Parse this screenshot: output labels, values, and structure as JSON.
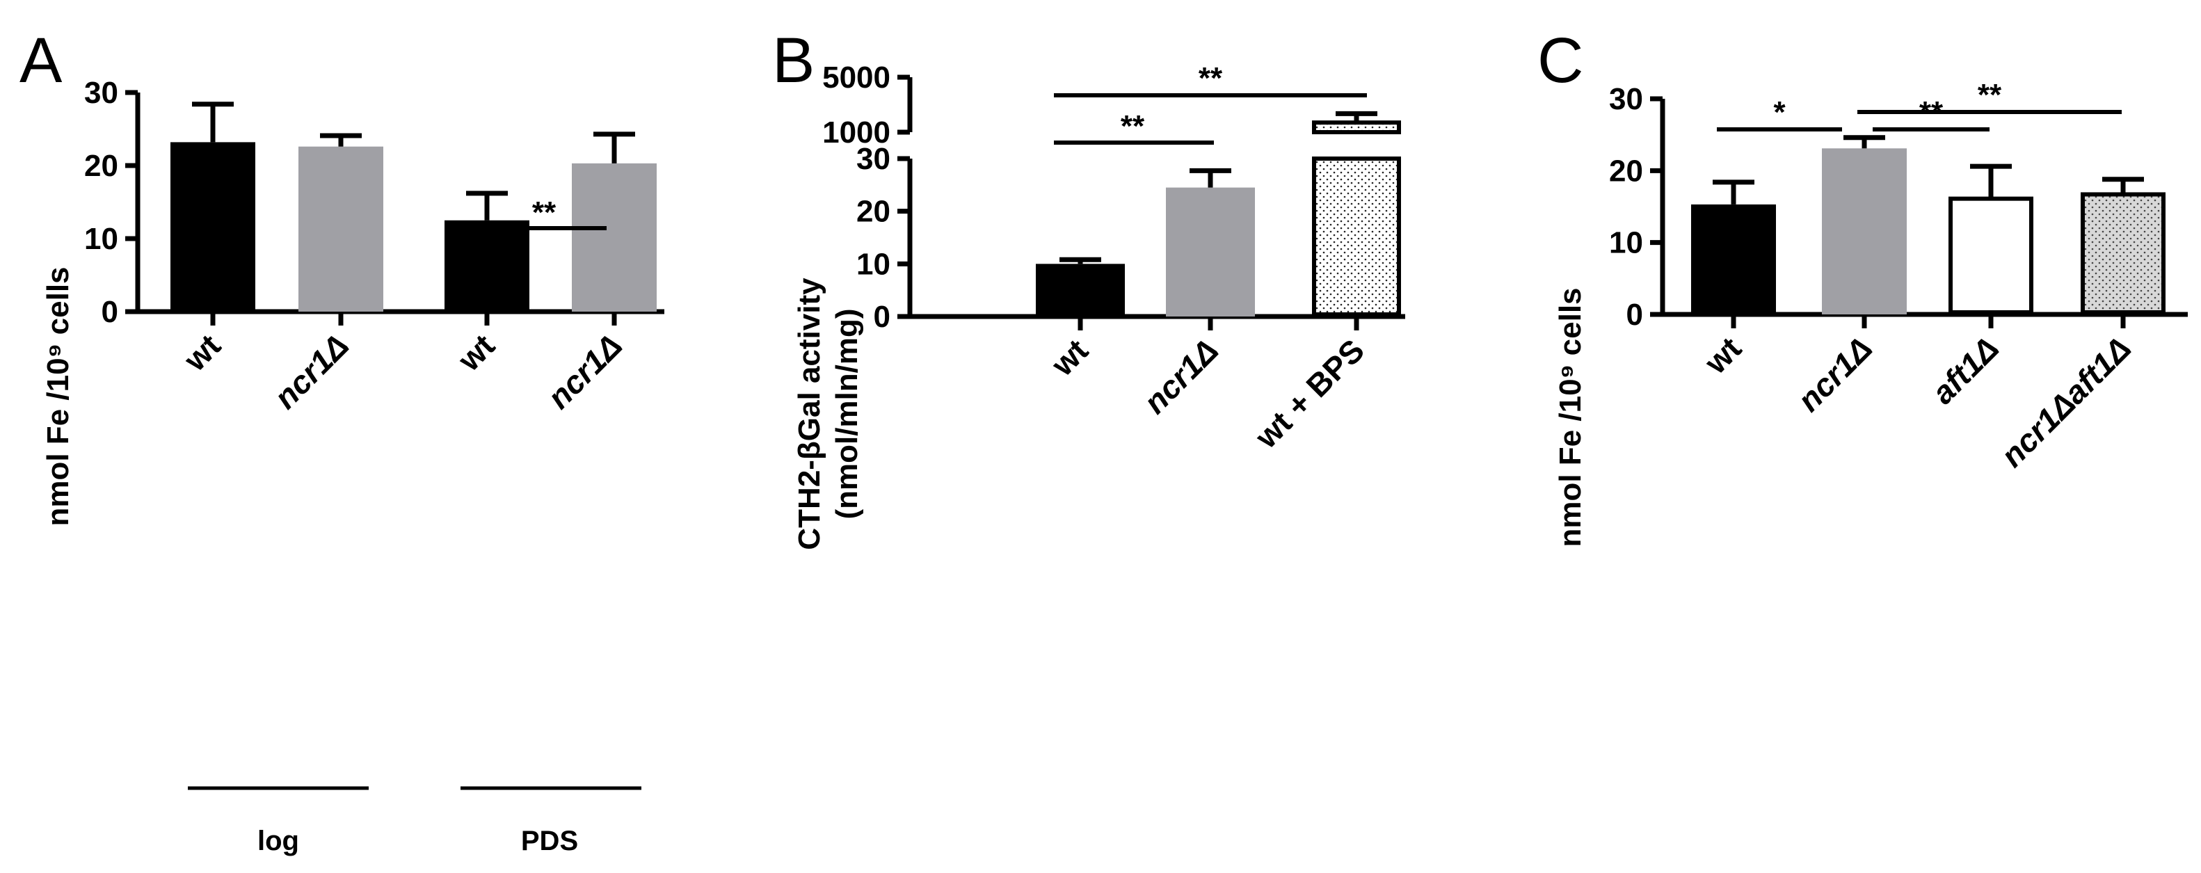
{
  "panels": {
    "A": {
      "label": "A",
      "ylabel": "nmol Fe /10⁹ cells",
      "groups": [
        "log",
        "PDS"
      ],
      "sig": "**"
    },
    "B": {
      "label": "B",
      "ylabel_line1": "CTH2-βGal activity",
      "ylabel_line2": "(nmol/mln/mg)",
      "sig1": "**",
      "sig2": "**"
    },
    "C": {
      "label": "C",
      "ylabel": "nmol Fe /10⁹ cells",
      "sig1": "*",
      "sig2": "**",
      "sig3": "**"
    }
  },
  "chart_data": [
    {
      "type": "bar",
      "panel": "A",
      "categories": [
        "wt",
        "ncr1Δ",
        "wt",
        "ncr1Δ"
      ],
      "groups": [
        {
          "name": "log",
          "categories": [
            0,
            1
          ]
        },
        {
          "name": "PDS",
          "categories": [
            2,
            3
          ]
        }
      ],
      "values": [
        23.2,
        22.6,
        12.5,
        20.3
      ],
      "errors": [
        5.2,
        1.5,
        3.7,
        4.0
      ],
      "colors": [
        "#000000",
        "#a0a0a5",
        "#000000",
        "#a0a0a5"
      ],
      "ylabel": "nmol Fe /10⁹ cells",
      "ylim": [
        0,
        30
      ],
      "yticks": [
        0,
        10,
        20,
        30
      ],
      "significance": [
        {
          "from": 2,
          "to": 3,
          "label": "**"
        }
      ]
    },
    {
      "type": "bar",
      "panel": "B",
      "categories": [
        "wt",
        "ncr1Δ",
        "wt + BPS"
      ],
      "values": [
        10.0,
        24.5,
        1700
      ],
      "errors": [
        0.8,
        3.2,
        650
      ],
      "colors": [
        "#000000",
        "#a0a0a5",
        "dotted"
      ],
      "ylabel": "CTH2-βGal activity (nmol/mln/mg)",
      "axis_break": {
        "lower_range": [
          0,
          30
        ],
        "lower_ticks": [
          0,
          10,
          20,
          30
        ],
        "upper_range": [
          1000,
          5000
        ],
        "upper_ticks": [
          1000,
          5000
        ]
      },
      "significance": [
        {
          "from": 0,
          "to": 1,
          "label": "**"
        },
        {
          "from": 0,
          "to": 2,
          "label": "**"
        }
      ]
    },
    {
      "type": "bar",
      "panel": "C",
      "categories": [
        "wt",
        "ncr1Δ",
        "aft1Δ",
        "ncr1Δaft1Δ"
      ],
      "values": [
        15.3,
        23.1,
        16.1,
        16.7
      ],
      "errors": [
        3.1,
        1.5,
        4.5,
        2.1
      ],
      "colors": [
        "#000000",
        "#a0a0a5",
        "#ffffff",
        "dotted"
      ],
      "ylabel": "nmol Fe /10⁹ cells",
      "ylim": [
        0,
        30
      ],
      "yticks": [
        0,
        10,
        20,
        30
      ],
      "significance": [
        {
          "from": 0,
          "to": 1,
          "label": "*"
        },
        {
          "from": 1,
          "to": 2,
          "label": "**"
        },
        {
          "from": 1,
          "to": 3,
          "label": "**"
        }
      ]
    }
  ]
}
